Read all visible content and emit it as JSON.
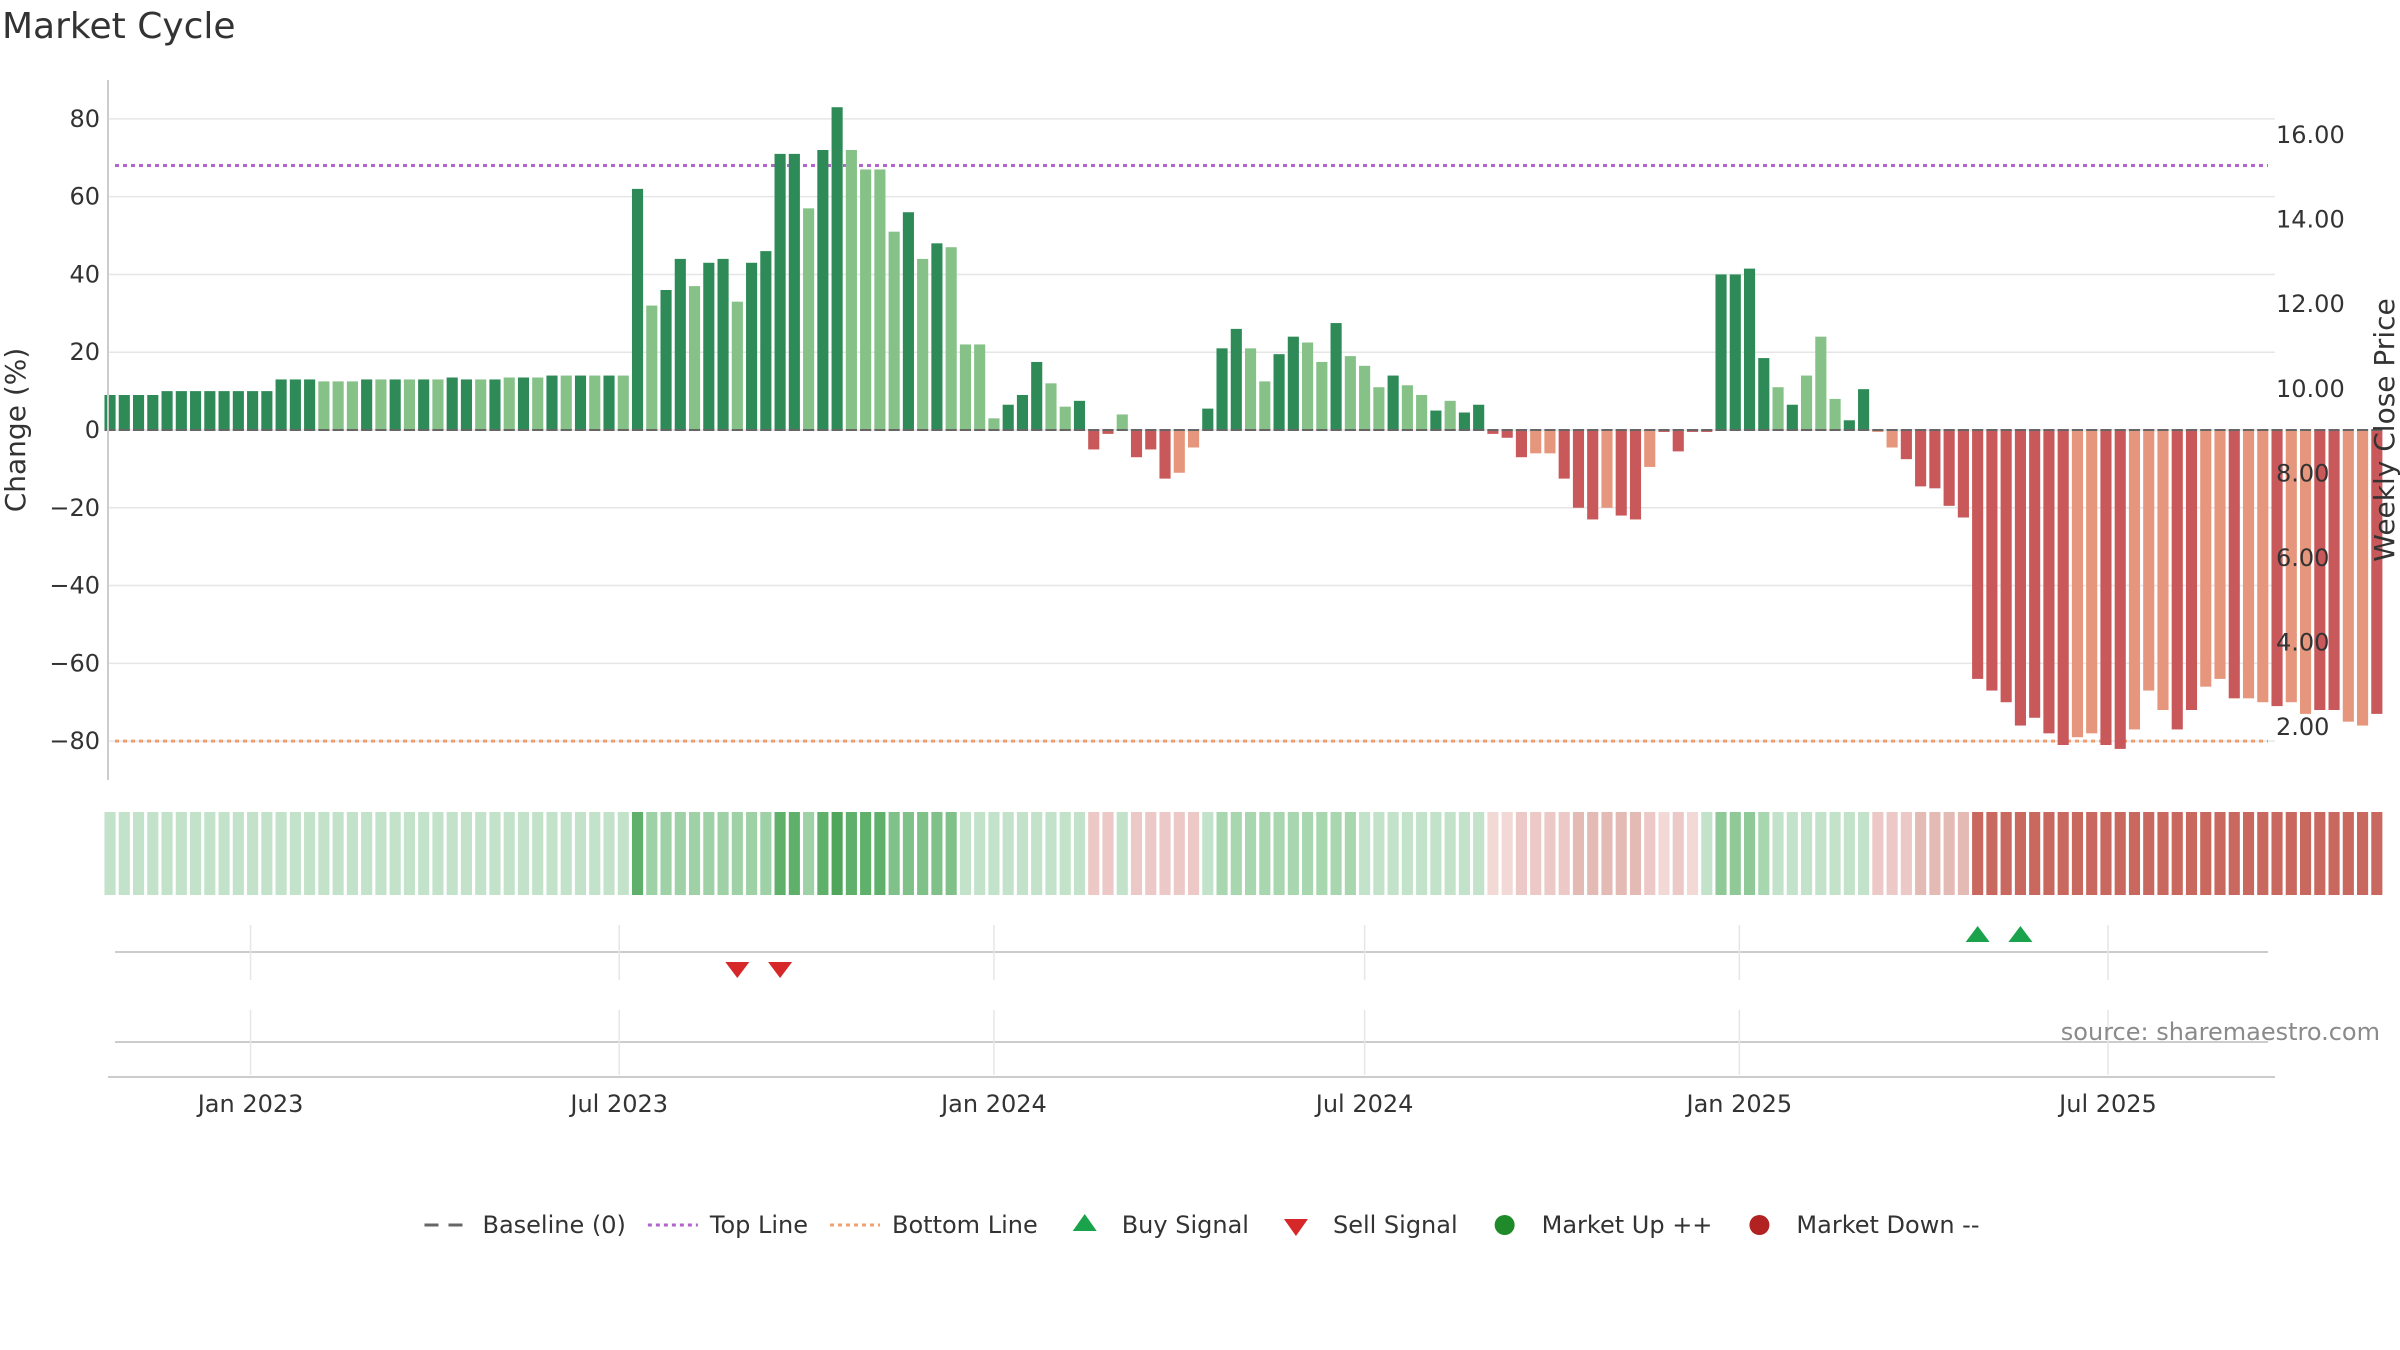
{
  "chart_data": {
    "type": "bar",
    "title": "Market Cycle",
    "ylabel": "Change (%)",
    "y2label": "Weekly Close Price",
    "ylim": [
      -90,
      90
    ],
    "yticks": [
      80,
      60,
      40,
      20,
      0,
      -20,
      -40,
      -60,
      -80
    ],
    "ytick_labels": [
      "80",
      "60",
      "40",
      "20",
      "0",
      "−20",
      "−40",
      "−60",
      "−80"
    ],
    "y2lim": [
      0.75,
      17.3
    ],
    "y2ticks": [
      16,
      14,
      12,
      10,
      8,
      6,
      4,
      2
    ],
    "y2tick_labels": [
      "16.00",
      "14.00",
      "12.00",
      "10.00",
      "8.00",
      "6.00",
      "4.00",
      "2.00"
    ],
    "top_line": 68,
    "bottom_line": -80,
    "x_start": "2022-10-23",
    "x_end": "2025-09-21",
    "xticks": [
      {
        "date": "2023-01-01",
        "label": "Jan 2023"
      },
      {
        "date": "2023-07-01",
        "label": "Jul 2023"
      },
      {
        "date": "2024-01-01",
        "label": "Jan 2024"
      },
      {
        "date": "2024-07-01",
        "label": "Jul 2024"
      },
      {
        "date": "2025-01-01",
        "label": "Jan 2025"
      },
      {
        "date": "2025-07-01",
        "label": "Jul 2025"
      }
    ],
    "weeks": {
      "start": "2022-10-24",
      "values": [
        9,
        9,
        9,
        9,
        10,
        10,
        10,
        10,
        10,
        10,
        10,
        10,
        13,
        13,
        13,
        12.5,
        12.5,
        12.5,
        13,
        13,
        13,
        13,
        13,
        13,
        13.5,
        13,
        13,
        13,
        13.5,
        13.5,
        13.5,
        14,
        14,
        14,
        14,
        14,
        14,
        62,
        32,
        36,
        44,
        37,
        43,
        44,
        33,
        43,
        46,
        71,
        71,
        57,
        72,
        83,
        72,
        67,
        67,
        51,
        56,
        44,
        48,
        47,
        22,
        22,
        3,
        6.5,
        9,
        17.5,
        12,
        6,
        7.5,
        -5,
        -1,
        4,
        -7,
        -5,
        -12.5,
        -11,
        -4.5,
        5.5,
        21,
        26,
        21,
        12.5,
        19.5,
        24,
        22.5,
        17.5,
        27.5,
        19,
        16.5,
        11,
        14,
        11.5,
        9,
        5,
        7.5,
        4.5,
        6.5,
        -1,
        -2,
        -7,
        -6,
        -6,
        -12.5,
        -20,
        -23,
        -20,
        -22,
        -23,
        -9.5,
        -0.5,
        -5.5,
        -0.5,
        -0.5,
        40,
        40,
        41.5,
        18.5,
        11,
        6.5,
        14,
        24,
        8,
        2.5,
        10.5,
        -0.5,
        -4.5,
        -7.5,
        -14.5,
        -15,
        -19.5,
        -22.5,
        -64,
        -67,
        -70,
        -76,
        -74,
        -78,
        -81,
        -79,
        -78,
        -81,
        -82,
        -77,
        -67,
        -72,
        -77,
        -72,
        -66,
        -64,
        -69,
        -69,
        -70,
        -71,
        -70,
        -73,
        -72,
        -72,
        -75,
        -76,
        -73
      ],
      "shade": [
        "d",
        "d",
        "d",
        "d",
        "d",
        "d",
        "d",
        "d",
        "d",
        "d",
        "d",
        "d",
        "d",
        "d",
        "d",
        "l",
        "l",
        "l",
        "d",
        "l",
        "d",
        "l",
        "d",
        "l",
        "d",
        "d",
        "l",
        "d",
        "l",
        "d",
        "l",
        "d",
        "l",
        "d",
        "l",
        "d",
        "l",
        "d",
        "l",
        "d",
        "d",
        "l",
        "d",
        "d",
        "l",
        "d",
        "d",
        "d",
        "d",
        "l",
        "d",
        "d",
        "l",
        "l",
        "l",
        "l",
        "d",
        "l",
        "d",
        "l",
        "l",
        "l",
        "l",
        "d",
        "d",
        "d",
        "l",
        "l",
        "d",
        "d",
        "d",
        "l",
        "d",
        "d",
        "d",
        "l",
        "l",
        "d",
        "d",
        "d",
        "l",
        "l",
        "d",
        "d",
        "l",
        "l",
        "d",
        "l",
        "l",
        "l",
        "d",
        "l",
        "l",
        "d",
        "l",
        "d",
        "d",
        "d",
        "d",
        "d",
        "l",
        "l",
        "d",
        "d",
        "d",
        "l",
        "d",
        "d",
        "l",
        "d",
        "d",
        "d",
        "d",
        "d",
        "d",
        "d",
        "d",
        "l",
        "d",
        "l",
        "l",
        "l",
        "d",
        "d",
        "l",
        "l",
        "d",
        "d",
        "d",
        "d",
        "d",
        "d",
        "d",
        "d",
        "d",
        "d",
        "d",
        "d",
        "l",
        "l",
        "d",
        "d",
        "l",
        "l",
        "l",
        "d",
        "d",
        "l",
        "l",
        "d",
        "l",
        "l",
        "d",
        "l",
        "l",
        "d",
        "d",
        "l",
        "l",
        "d",
        "d",
        "l",
        "l",
        "d",
        "l"
      ]
    },
    "band": {
      "upper": [
        "#c2e3c9",
        "#c2e3c9",
        "#c2e3c9",
        "#c2e3c9",
        "#c2e3c9",
        "#c2e3c9",
        "#c2e3c9",
        "#c2e3c9",
        "#c2e3c9",
        "#c2e3c9",
        "#c2e3c9",
        "#c2e3c9",
        "#c2e3c9",
        "#c2e3c9",
        "#c2e3c9",
        "#c2e3c9",
        "#c2e3c9",
        "#c2e3c9",
        "#c2e3c9",
        "#c2e3c9",
        "#c2e3c9",
        "#c2e3c9",
        "#c2e3c9",
        "#c2e3c9",
        "#c2e3c9",
        "#c2e3c9",
        "#c2e3c9",
        "#c2e3c9",
        "#c2e3c9",
        "#c2e3c9",
        "#c2e3c9",
        "#c2e3c9",
        "#c2e3c9",
        "#c2e3c9",
        "#c2e3c9",
        "#c2e3c9",
        "#c2e3c9",
        "#5fb06b",
        "#9fd1a6",
        "#9fd1a6",
        "#9fd1a6",
        "#9fd1a6",
        "#9fd1a6",
        "#9fd1a6",
        "#9fd1a6",
        "#9fd1a6",
        "#9fd1a6",
        "#5fb06b",
        "#5fb06b",
        "#9fd1a6",
        "#5fb06b",
        "#4fa65b",
        "#5fb06b",
        "#5fb06b",
        "#5fb06b",
        "#7fc189",
        "#7fc189",
        "#7fc189",
        "#7fc189",
        "#7fc189",
        "#c2e3c9",
        "#c2e3c9",
        "#c2e3c9",
        "#c2e3c9",
        "#c2e3c9",
        "#c2e3c9",
        "#c2e3c9",
        "#c2e3c9",
        "#c2e3c9",
        "#ecc9c6",
        "#ecc9c6",
        "#c2e3c9",
        "#ecc9c6",
        "#ecc9c6",
        "#ecc9c6",
        "#ecc9c6",
        "#ecc9c6",
        "#c2e3c9",
        "#a8d6ae",
        "#a8d6ae",
        "#a8d6ae",
        "#a8d6ae",
        "#a8d6ae",
        "#a8d6ae",
        "#a8d6ae",
        "#a8d6ae",
        "#a8d6ae",
        "#a8d6ae",
        "#c2e3c9",
        "#c2e3c9",
        "#c2e3c9",
        "#c2e3c9",
        "#c2e3c9",
        "#c2e3c9",
        "#c2e3c9",
        "#c2e3c9",
        "#c2e3c9",
        "#f3d9d6",
        "#f3d9d6",
        "#ecc9c6",
        "#ecc9c6",
        "#ecc9c6",
        "#ecc9c6",
        "#e4bab5",
        "#e4bab5",
        "#e4bab5",
        "#e4bab5",
        "#e4bab5",
        "#ecc9c6",
        "#f3d9d6",
        "#ecc9c6",
        "#f3d9d6",
        "#c2e3c9",
        "#8fc998",
        "#8fc998",
        "#8fc998",
        "#a8d6ae",
        "#c2e3c9",
        "#c2e3c9",
        "#c2e3c9",
        "#c2e3c9",
        "#c2e3c9",
        "#c2e3c9",
        "#c2e3c9",
        "#ecc9c6",
        "#ecc9c6",
        "#ecc9c6",
        "#e4bab5",
        "#e4bab5",
        "#e4bab5",
        "#e4bab5",
        "#c8685f",
        "#c8685f",
        "#c8685f",
        "#c8685f",
        "#c8685f",
        "#c8685f",
        "#c8685f",
        "#c8685f",
        "#c8685f",
        "#c8685f",
        "#c8685f",
        "#c8685f",
        "#c8685f",
        "#c8685f",
        "#c8685f",
        "#c8685f",
        "#c8685f",
        "#c8685f",
        "#c8685f",
        "#c8685f",
        "#c8685f",
        "#c8685f",
        "#c8685f",
        "#c8685f",
        "#c8685f",
        "#c8685f",
        "#c8685f",
        "#c8685f",
        "#c8685f"
      ],
      "lower": [
        "#c2e3c9",
        "#c2e3c9",
        "#c2e3c9",
        "#c2e3c9",
        "#c2e3c9",
        "#c2e3c9",
        "#c2e3c9",
        "#c2e3c9",
        "#c2e3c9",
        "#c2e3c9",
        "#c2e3c9",
        "#c2e3c9",
        "#c2e3c9",
        "#c2e3c9",
        "#c2e3c9",
        "#c2e3c9",
        "#c2e3c9",
        "#c2e3c9",
        "#c2e3c9",
        "#c2e3c9",
        "#c2e3c9",
        "#c2e3c9",
        "#c2e3c9",
        "#c2e3c9",
        "#c2e3c9",
        "#c2e3c9",
        "#c2e3c9",
        "#c2e3c9",
        "#c2e3c9",
        "#c2e3c9",
        "#c2e3c9",
        "#c2e3c9",
        "#c2e3c9",
        "#c2e3c9",
        "#c2e3c9",
        "#c2e3c9",
        "#c2e3c9",
        "#5fb06b",
        "#9fd1a6",
        "#9fd1a6",
        "#9fd1a6",
        "#9fd1a6",
        "#9fd1a6",
        "#9fd1a6",
        "#9fd1a6",
        "#9fd1a6",
        "#9fd1a6",
        "#5fb06b",
        "#5fb06b",
        "#9fd1a6",
        "#5fb06b",
        "#4fa65b",
        "#5fb06b",
        "#5fb06b",
        "#5fb06b",
        "#7fc189",
        "#7fc189",
        "#7fc189",
        "#7fc189",
        "#7fc189",
        "#c2e3c9",
        "#c2e3c9",
        "#c2e3c9",
        "#c2e3c9",
        "#c2e3c9",
        "#c2e3c9",
        "#c2e3c9",
        "#c2e3c9",
        "#c2e3c9",
        "#ecc9c6",
        "#ecc9c6",
        "#c2e3c9",
        "#ecc9c6",
        "#ecc9c6",
        "#ecc9c6",
        "#ecc9c6",
        "#ecc9c6",
        "#c2e3c9",
        "#a8d6ae",
        "#a8d6ae",
        "#a8d6ae",
        "#a8d6ae",
        "#a8d6ae",
        "#a8d6ae",
        "#a8d6ae",
        "#a8d6ae",
        "#a8d6ae",
        "#a8d6ae",
        "#c2e3c9",
        "#c2e3c9",
        "#c2e3c9",
        "#c2e3c9",
        "#c2e3c9",
        "#c2e3c9",
        "#c2e3c9",
        "#c2e3c9",
        "#c2e3c9",
        "#f3d9d6",
        "#f3d9d6",
        "#ecc9c6",
        "#ecc9c6",
        "#ecc9c6",
        "#ecc9c6",
        "#e4bab5",
        "#e4bab5",
        "#e4bab5",
        "#e4bab5",
        "#e4bab5",
        "#ecc9c6",
        "#f3d9d6",
        "#ecc9c6",
        "#f3d9d6",
        "#c2e3c9",
        "#8fc998",
        "#8fc998",
        "#8fc998",
        "#a8d6ae",
        "#c2e3c9",
        "#c2e3c9",
        "#c2e3c9",
        "#c2e3c9",
        "#c2e3c9",
        "#c2e3c9",
        "#c2e3c9",
        "#ecc9c6",
        "#ecc9c6",
        "#ecc9c6",
        "#e4bab5",
        "#e4bab5",
        "#e4bab5",
        "#e4bab5",
        "#c8685f",
        "#c8685f",
        "#c8685f",
        "#c8685f",
        "#c8685f",
        "#c8685f",
        "#c8685f",
        "#c8685f",
        "#c8685f",
        "#c8685f",
        "#c8685f",
        "#c8685f",
        "#c8685f",
        "#c8685f",
        "#c8685f",
        "#c8685f",
        "#c8685f",
        "#c8685f",
        "#c8685f",
        "#c8685f",
        "#c8685f",
        "#c8685f",
        "#c8685f",
        "#c8685f",
        "#c8685f",
        "#c8685f",
        "#c8685f",
        "#c8685f",
        "#c8685f"
      ]
    },
    "buy_signals": [
      "2025-04-28",
      "2025-05-19"
    ],
    "sell_signals": [
      "2023-08-28",
      "2023-09-18"
    ],
    "legend": [
      {
        "label": "Baseline (0)",
        "marker": "dash"
      },
      {
        "label": "Top Line",
        "marker": "dotted-purple"
      },
      {
        "label": "Bottom Line",
        "marker": "dotted-orange"
      },
      {
        "label": "Buy Signal",
        "marker": "triangle-up-green"
      },
      {
        "label": "Sell Signal",
        "marker": "triangle-down-red"
      },
      {
        "label": "Market Up ++",
        "marker": "circle-green"
      },
      {
        "label": "Market Down --",
        "marker": "circle-red"
      }
    ],
    "source": "source: sharemaestro.com",
    "grid": true,
    "legend_position": "bottom-center"
  },
  "colors": {
    "up_dark": "#2e8b57",
    "up_light": "#86c188",
    "down_dark": "#c8585a",
    "down_light": "#e6967c",
    "top_line": "#b266cc",
    "bottom_line": "#f0a070",
    "buy": "#1aa34a",
    "sell": "#d62828",
    "market_up": "#1e8a2a",
    "market_down": "#b22222",
    "grid": "#e6e6e6",
    "axis": "#cccccc",
    "baseline": "#666666"
  }
}
